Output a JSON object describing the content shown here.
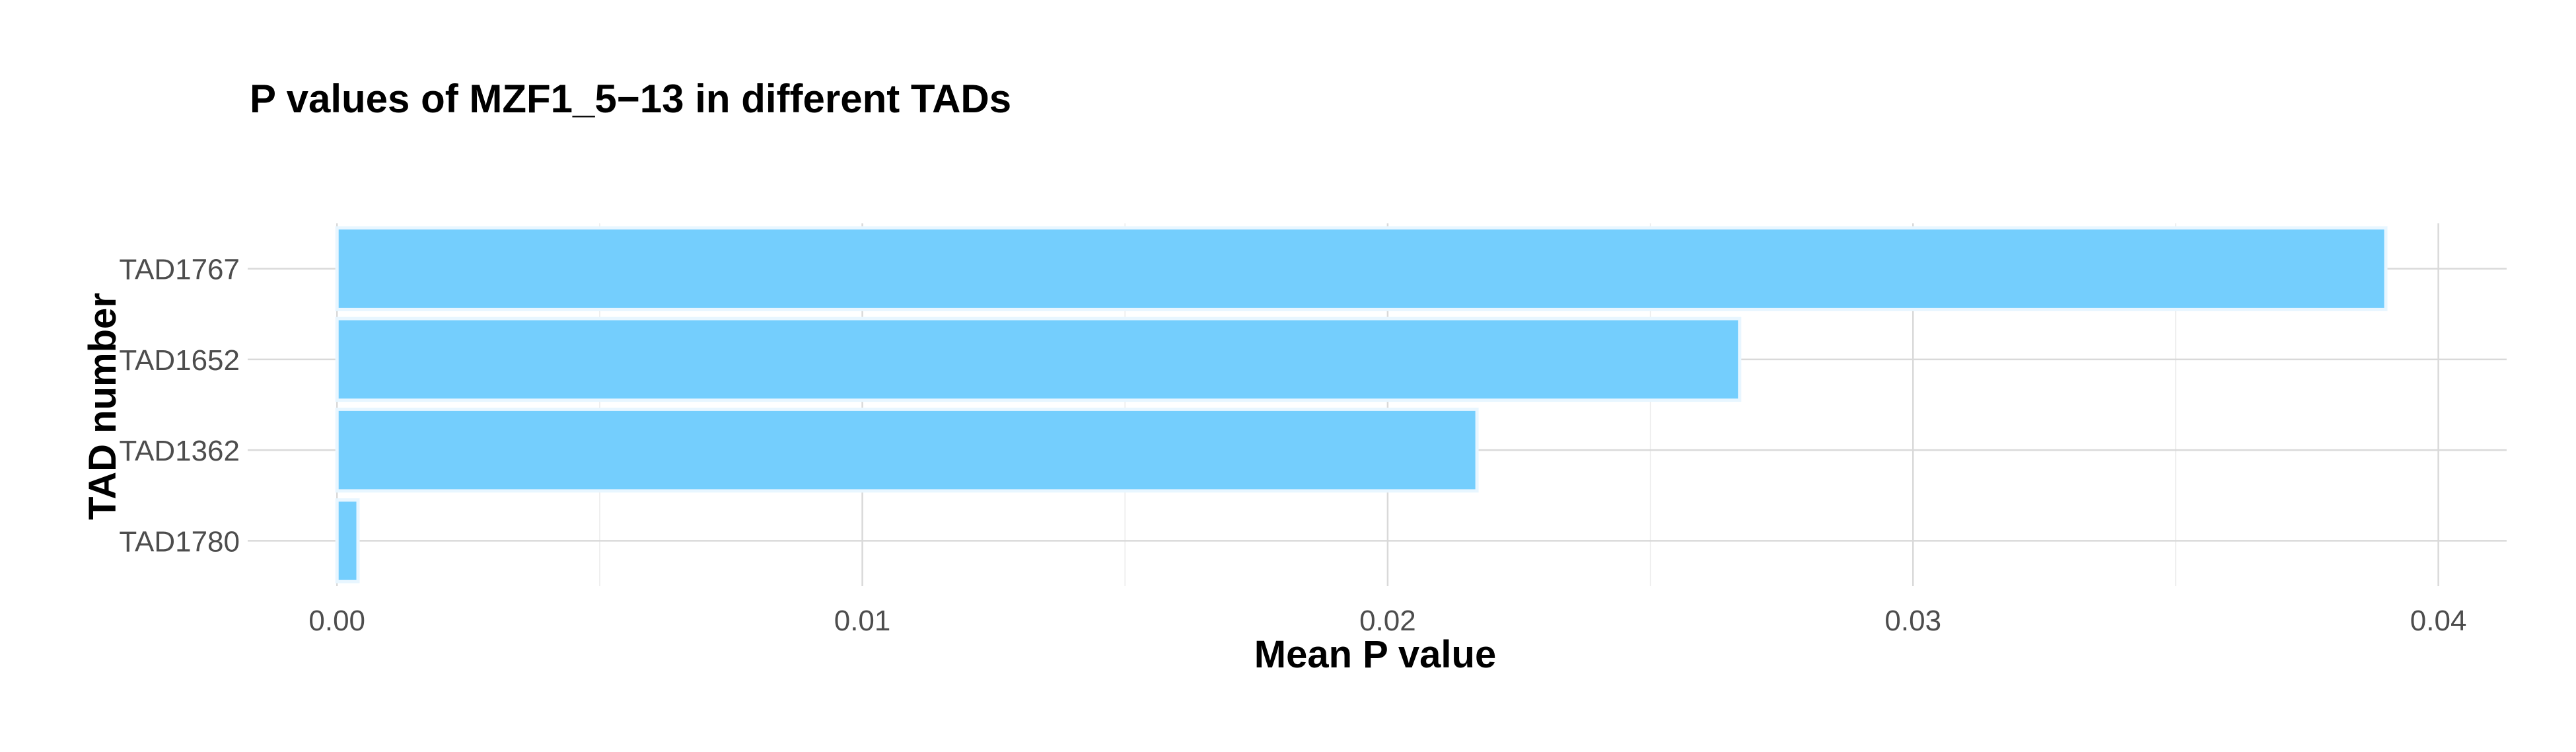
{
  "chart_data": {
    "type": "bar",
    "orientation": "horizontal",
    "title": "P values of MZF1_5−13 in different TADs",
    "xlabel": "Mean P value",
    "ylabel": "TAD number",
    "categories": [
      "TAD1767",
      "TAD1652",
      "TAD1362",
      "TAD1780"
    ],
    "values": [
      0.039,
      0.0267,
      0.0217,
      0.0004
    ],
    "xlim": [
      -0.0017,
      0.0413
    ],
    "xticks": [
      0.0,
      0.01,
      0.02,
      0.03,
      0.04
    ],
    "xtick_labels": [
      "0.00",
      "0.01",
      "0.02",
      "0.03",
      "0.04"
    ],
    "grid": true,
    "legend": "none",
    "bar_color": "#74cefd"
  }
}
